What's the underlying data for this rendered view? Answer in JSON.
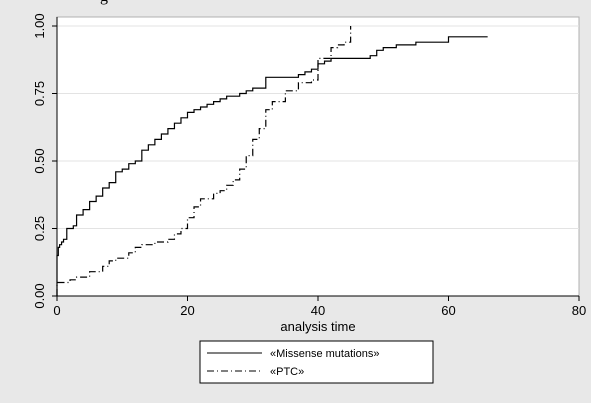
{
  "heading": "g",
  "chart_data": {
    "type": "line",
    "xlabel": "analysis time",
    "ylabel": "",
    "xlim": [
      0,
      80
    ],
    "ylim": [
      0,
      1
    ],
    "xticks": [
      "0",
      "20",
      "40",
      "60",
      "80"
    ],
    "yticks": [
      "0.00",
      "0.25",
      "0.50",
      "0.75",
      "1.00"
    ],
    "grid": true,
    "legend_position": "bottom",
    "series": [
      {
        "name": "«Missense mutations»",
        "style": "solid",
        "color": "#000000",
        "steps": [
          [
            0,
            0
          ],
          [
            0,
            0.15
          ],
          [
            0.2,
            0.18
          ],
          [
            0.4,
            0.19
          ],
          [
            0.7,
            0.2
          ],
          [
            1,
            0.21
          ],
          [
            1.5,
            0.25
          ],
          [
            2.5,
            0.26
          ],
          [
            3,
            0.3
          ],
          [
            4,
            0.32
          ],
          [
            5,
            0.35
          ],
          [
            6,
            0.37
          ],
          [
            7,
            0.4
          ],
          [
            8,
            0.42
          ],
          [
            9,
            0.46
          ],
          [
            10,
            0.47
          ],
          [
            11,
            0.49
          ],
          [
            12,
            0.5
          ],
          [
            13,
            0.54
          ],
          [
            14,
            0.56
          ],
          [
            15,
            0.58
          ],
          [
            16,
            0.6
          ],
          [
            17,
            0.62
          ],
          [
            18,
            0.64
          ],
          [
            19,
            0.66
          ],
          [
            20,
            0.68
          ],
          [
            21,
            0.69
          ],
          [
            22,
            0.7
          ],
          [
            23,
            0.71
          ],
          [
            24,
            0.72
          ],
          [
            25,
            0.73
          ],
          [
            26,
            0.74
          ],
          [
            28,
            0.75
          ],
          [
            29,
            0.76
          ],
          [
            30,
            0.77
          ],
          [
            32,
            0.81
          ],
          [
            37,
            0.82
          ],
          [
            38,
            0.83
          ],
          [
            39,
            0.84
          ],
          [
            40,
            0.86
          ],
          [
            41,
            0.87
          ],
          [
            42,
            0.88
          ],
          [
            48,
            0.89
          ],
          [
            49,
            0.91
          ],
          [
            50,
            0.92
          ],
          [
            52,
            0.93
          ],
          [
            55,
            0.94
          ],
          [
            60,
            0.96
          ],
          [
            66,
            0.96
          ]
        ]
      },
      {
        "name": "«PTC»",
        "style": "dashdot",
        "color": "#000000",
        "steps": [
          [
            0,
            0
          ],
          [
            0,
            0.05
          ],
          [
            2,
            0.06
          ],
          [
            3,
            0.07
          ],
          [
            5,
            0.09
          ],
          [
            7,
            0.11
          ],
          [
            8,
            0.13
          ],
          [
            9,
            0.14
          ],
          [
            11,
            0.16
          ],
          [
            12,
            0.18
          ],
          [
            13,
            0.19
          ],
          [
            15,
            0.2
          ],
          [
            17,
            0.21
          ],
          [
            18,
            0.23
          ],
          [
            19,
            0.25
          ],
          [
            20,
            0.29
          ],
          [
            21,
            0.33
          ],
          [
            22,
            0.36
          ],
          [
            24,
            0.38
          ],
          [
            25,
            0.39
          ],
          [
            26,
            0.41
          ],
          [
            27,
            0.43
          ],
          [
            28,
            0.47
          ],
          [
            29,
            0.52
          ],
          [
            30,
            0.58
          ],
          [
            31,
            0.62
          ],
          [
            32,
            0.69
          ],
          [
            33,
            0.72
          ],
          [
            35,
            0.76
          ],
          [
            37,
            0.79
          ],
          [
            39,
            0.8
          ],
          [
            40,
            0.88
          ],
          [
            42,
            0.92
          ],
          [
            43,
            0.93
          ],
          [
            44,
            0.94
          ],
          [
            45,
            1.0
          ]
        ]
      }
    ]
  }
}
